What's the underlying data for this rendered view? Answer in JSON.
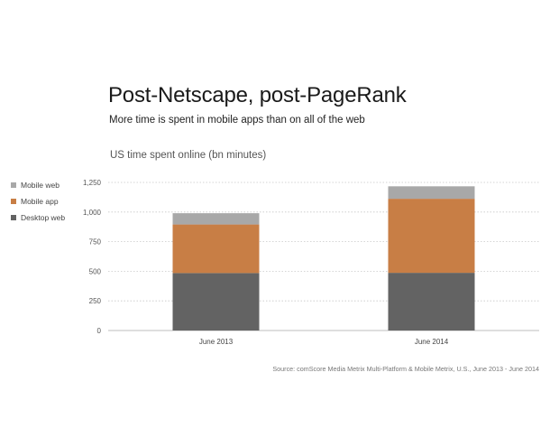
{
  "title": "Post-Netscape, post-PageRank",
  "subtitle": "More time is spent in mobile apps than on all of the web",
  "source": "Source: comScore Media Metrix Multi-Platform & Mobile Metrix, U.S., June 2013 - June 2014",
  "chart_data": {
    "type": "bar",
    "stacked": true,
    "title": "US time spent online (bn minutes)",
    "categories": [
      "June 2013",
      "June 2014"
    ],
    "series": [
      {
        "name": "Desktop web",
        "values": [
          485,
          487
        ],
        "color": "#636363"
      },
      {
        "name": "Mobile app",
        "values": [
          410,
          625
        ],
        "color": "#c87e45"
      },
      {
        "name": "Mobile web",
        "values": [
          95,
          105
        ],
        "color": "#a8a8a8"
      }
    ],
    "yticks": [
      "0",
      "250",
      "500",
      "750",
      "1,000",
      "1,250"
    ],
    "ylim": [
      0,
      1250
    ],
    "grid": true,
    "legend_position": "left"
  }
}
